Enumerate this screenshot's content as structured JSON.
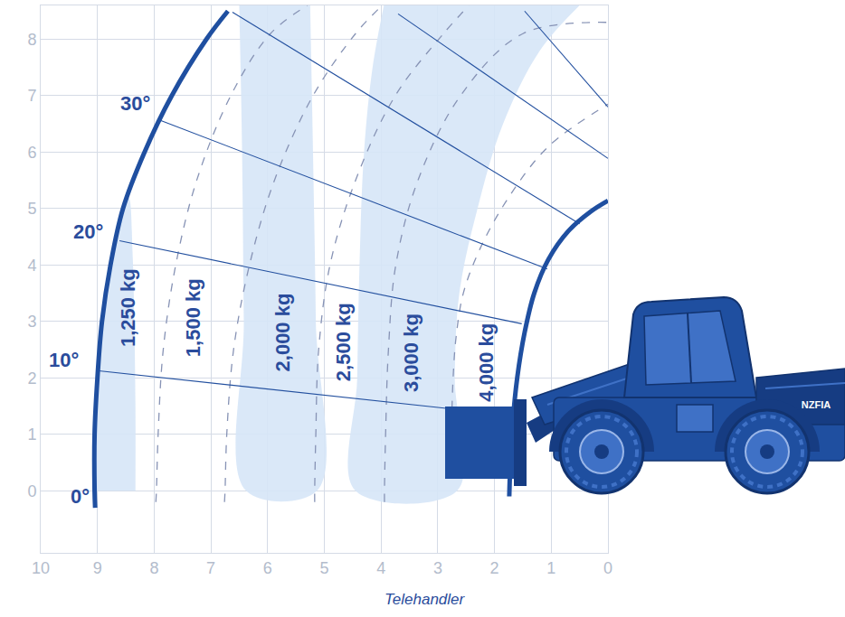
{
  "chart_data": {
    "type": "line",
    "caption": "Telehandler",
    "vehicle_label": "NZFIA",
    "xlim": [
      10,
      0
    ],
    "ylim": [
      -1.1,
      8.6
    ],
    "xticks": [
      0,
      1,
      2,
      3,
      4,
      5,
      6,
      7,
      8,
      9,
      10
    ],
    "yticks": [
      0,
      1,
      2,
      3,
      4,
      5,
      6,
      7,
      8
    ],
    "grid": true,
    "series": [
      {
        "type": "area",
        "color": "#d6e6f7",
        "x": [
          9.05,
          9.05,
          9.0,
          8.92,
          8.77,
          8.6,
          8.45,
          8.38,
          8.35,
          8.33,
          8.33
        ],
        "values": [
          0,
          1,
          2,
          3,
          4,
          4.8,
          5.2,
          4.2,
          3,
          1.5,
          0
        ]
      },
      {
        "type": "area",
        "color": "#d6e6f7",
        "x": [
          6.5,
          6.45,
          6.42,
          6.38,
          5.13,
          5.15,
          5.2,
          5.25
        ],
        "values": [
          8.6,
          6,
          3,
          0,
          0,
          3,
          6,
          8.6
        ]
      },
      {
        "type": "area",
        "color": "#d6e6f7",
        "x": [
          3.95,
          4.15,
          4.3,
          4.38,
          4.42,
          4.45,
          2.66,
          2.7,
          2.62,
          2.3,
          1.85,
          1.2,
          0.5
        ],
        "values": [
          8.6,
          7.5,
          6,
          4,
          2,
          0,
          0,
          2,
          3.5,
          5,
          6.5,
          7.8,
          8.6
        ]
      },
      {
        "type": "line",
        "line_style": "dashed",
        "color": "#8793b5",
        "x": [
          7.97,
          7.96,
          7.93,
          7.84,
          7.62,
          7.25,
          6.65,
          5.95,
          5.3
        ],
        "values": [
          -0.2,
          0,
          1,
          2.5,
          4,
          5.5,
          7,
          8.1,
          8.6
        ]
      },
      {
        "type": "line",
        "line_style": "dashed",
        "color": "#8793b5",
        "x": [
          6.76,
          6.75,
          6.72,
          6.6,
          6.32,
          5.88,
          5.2,
          4.45,
          3.98
        ],
        "values": [
          -0.2,
          0,
          1,
          2.5,
          4,
          5.5,
          7,
          8.1,
          8.6
        ]
      },
      {
        "type": "line",
        "line_style": "dashed",
        "color": "#8793b5",
        "x": [
          5.17,
          5.17,
          5.15,
          5.1,
          4.9,
          4.45,
          3.75,
          2.9,
          2.45
        ],
        "values": [
          -0.2,
          0,
          1,
          2.5,
          4,
          5.5,
          7,
          8.1,
          8.6
        ]
      },
      {
        "type": "line",
        "line_style": "dashed",
        "color": "#8793b5",
        "x": [
          3.94,
          3.94,
          3.92,
          3.87,
          3.74,
          3.35,
          2.6,
          1.5,
          0.02
        ],
        "values": [
          -0.2,
          0,
          1,
          2.5,
          4,
          5.5,
          7,
          8.1,
          8.3
        ]
      },
      {
        "type": "line",
        "line_style": "dashed",
        "color": "#8793b5",
        "x": [
          2.75,
          2.73,
          2.68,
          2.55,
          2.25,
          1.75,
          1.05,
          0
        ],
        "values": [
          1.45,
          2,
          2.7,
          3.5,
          4.3,
          5.2,
          6.1,
          6.85
        ]
      },
      {
        "type": "line",
        "line_style": "solid",
        "color": "#23509f",
        "x": [
          9.01,
          2.85
        ],
        "values": [
          2.13,
          1.46
        ]
      },
      {
        "type": "line",
        "line_style": "solid",
        "color": "#23509f",
        "x": [
          8.61,
          1.52
        ],
        "values": [
          4.43,
          2.96
        ]
      },
      {
        "type": "line",
        "line_style": "solid",
        "color": "#23509f",
        "x": [
          7.88,
          1.07
        ],
        "values": [
          6.56,
          3.93
        ]
      },
      {
        "type": "line",
        "line_style": "solid",
        "color": "#23509f",
        "x": [
          6.62,
          0.5
        ],
        "values": [
          8.48,
          4.73
        ]
      },
      {
        "type": "line",
        "line_style": "solid",
        "color": "#23509f",
        "x": [
          3.7,
          0
        ],
        "values": [
          8.45,
          5.89
        ]
      },
      {
        "type": "line",
        "line_style": "solid",
        "color": "#23509f",
        "x": [
          1.47,
          0
        ],
        "values": [
          8.5,
          6.8
        ]
      },
      {
        "type": "line",
        "line_style": "thick",
        "color": "#1f4fa0",
        "x": [
          9.04,
          9.05,
          9.05,
          9.0,
          8.92,
          8.77,
          8.55,
          8.17,
          7.69,
          7.08,
          6.7
        ],
        "values": [
          -0.3,
          0,
          1,
          2,
          3,
          4,
          5,
          6,
          7,
          8,
          8.5
        ]
      },
      {
        "type": "line",
        "line_style": "thick",
        "color": "#1f4fa0",
        "x": [
          1.74,
          1.72,
          1.68,
          1.6,
          1.47,
          1.3,
          1.05,
          0.7,
          0.3,
          0
        ],
        "values": [
          -0.1,
          0.5,
          1.2,
          2,
          2.8,
          3.5,
          4.1,
          4.6,
          4.95,
          5.14
        ]
      }
    ],
    "angle_labels": [
      {
        "text": "0°",
        "x": 9.3,
        "y": -0.1
      },
      {
        "text": "10°",
        "x": 9.6,
        "y": 2.32
      },
      {
        "text": "20°",
        "x": 9.17,
        "y": 4.59
      },
      {
        "text": "30°",
        "x": 8.33,
        "y": 6.86
      }
    ],
    "zone_labels": [
      {
        "text": "1,250 kg",
        "x": 8.45,
        "y": 3.24
      },
      {
        "text": "1,500 kg",
        "x": 7.32,
        "y": 3.06
      },
      {
        "text": "2,000 kg",
        "x": 5.74,
        "y": 2.8
      },
      {
        "text": "2,500 kg",
        "x": 4.66,
        "y": 2.64
      },
      {
        "text": "3,000 kg",
        "x": 3.48,
        "y": 2.45
      },
      {
        "text": "4,000 kg",
        "x": 2.15,
        "y": 2.27
      }
    ]
  }
}
